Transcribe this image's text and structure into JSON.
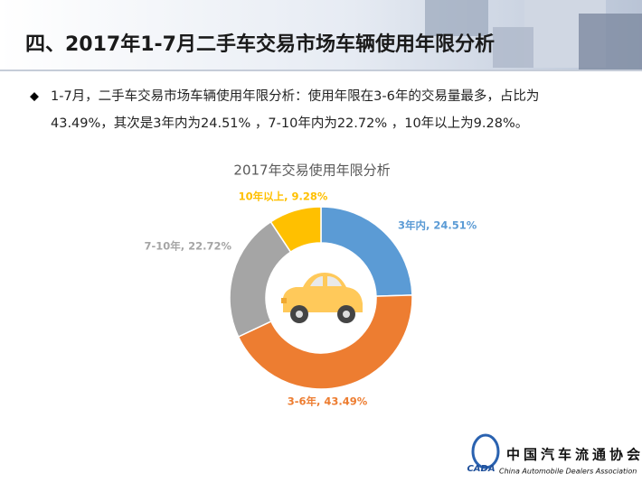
{
  "header": {
    "title": "四、2017年1-7月二手车交易市场车辆使用年限分析"
  },
  "bullet": [
    "1-7月，二手车交易市场车辆使用年限分析：使用年限在3-6年的交易量最多，占比为",
    "43.49%，其次是3年内为24.51% ，7-10年内为22.72% ，10年以上为9.28%。"
  ],
  "chart_data": {
    "type": "donut",
    "title": "2017年交易使用年限分析",
    "values": [
      24.51,
      43.49,
      22.72,
      9.28
    ],
    "value_labels": [
      "3年内, 24.51%",
      "3-6年, 43.49%",
      "7-10年, 22.72%",
      "10年以上, 9.28%"
    ],
    "colors": [
      "#5b9bd5",
      "#ed7d31",
      "#a5a5a5",
      "#ffc000"
    ]
  },
  "footer": {
    "logo": "CADA",
    "org": "中国汽车流通协会",
    "org_en": "China Automobile Dealers Association"
  }
}
